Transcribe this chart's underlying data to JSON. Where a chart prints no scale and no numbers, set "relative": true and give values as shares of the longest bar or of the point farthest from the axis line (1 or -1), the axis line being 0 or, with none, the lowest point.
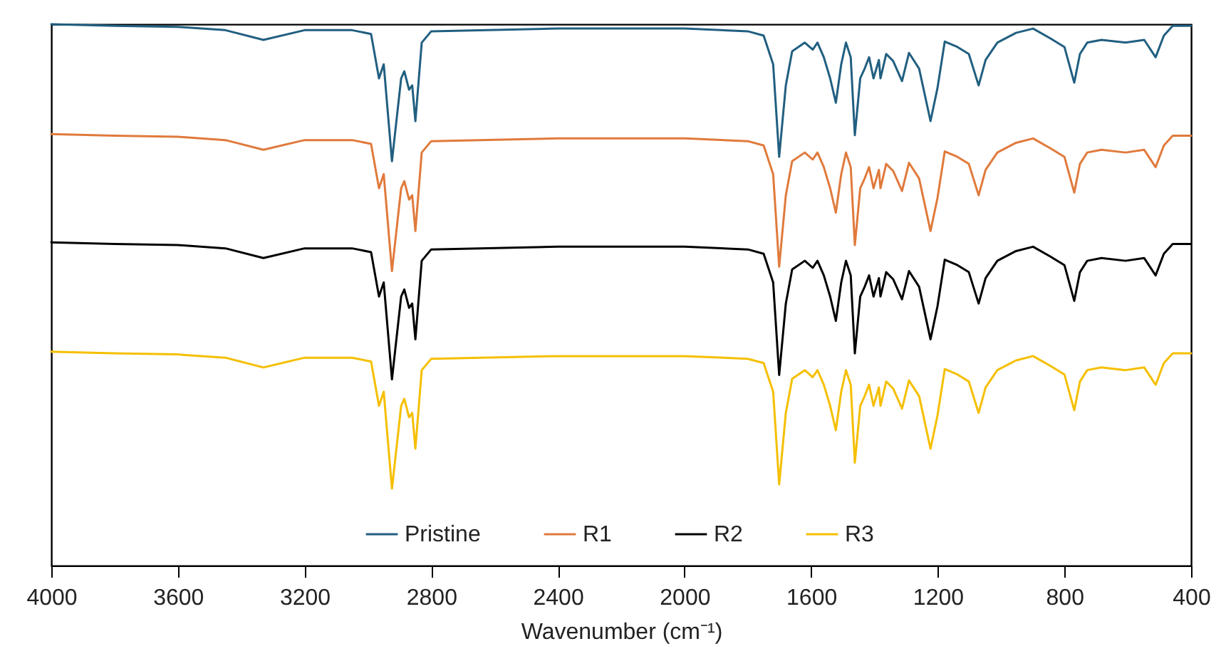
{
  "chart_data": {
    "type": "line",
    "relative": true,
    "xlabel": "Wavenumber (cm⁻¹)",
    "xlim": [
      4000,
      400
    ],
    "xticks": [
      4000,
      3600,
      3200,
      2800,
      2400,
      2000,
      1600,
      1200,
      800,
      400
    ],
    "tick_labels": "x",
    "legend": "bottom",
    "x": [
      4000,
      3800,
      3600,
      3450,
      3330,
      3200,
      3050,
      2990,
      2965,
      2950,
      2924,
      2895,
      2885,
      2870,
      2860,
      2850,
      2830,
      2800,
      2400,
      2000,
      1800,
      1750,
      1720,
      1701,
      1680,
      1660,
      1620,
      1595,
      1580,
      1560,
      1540,
      1522,
      1505,
      1490,
      1475,
      1462,
      1445,
      1431,
      1417,
      1403,
      1386,
      1381,
      1363,
      1341,
      1313,
      1291,
      1259,
      1223,
      1201,
      1178,
      1138,
      1102,
      1071,
      1049,
      1012,
      953,
      899,
      845,
      800,
      769,
      751,
      728,
      683,
      607,
      548,
      512,
      486,
      458,
      400
    ],
    "series": [
      {
        "name": "Pristine",
        "color": "#215f80",
        "values": [
          1.0,
          0.997,
          0.995,
          0.989,
          0.971,
          0.989,
          0.989,
          0.982,
          0.9,
          0.926,
          0.747,
          0.9,
          0.913,
          0.879,
          0.887,
          0.821,
          0.966,
          0.987,
          0.992,
          0.992,
          0.987,
          0.979,
          0.926,
          0.755,
          0.887,
          0.95,
          0.966,
          0.953,
          0.966,
          0.939,
          0.9,
          0.855,
          0.926,
          0.966,
          0.939,
          0.795,
          0.9,
          0.918,
          0.939,
          0.9,
          0.934,
          0.9,
          0.945,
          0.932,
          0.895,
          0.947,
          0.918,
          0.821,
          0.882,
          0.968,
          0.958,
          0.945,
          0.887,
          0.934,
          0.966,
          0.984,
          0.992,
          0.974,
          0.958,
          0.892,
          0.945,
          0.966,
          0.971,
          0.966,
          0.971,
          0.939,
          0.979,
          0.997,
          0.997
        ]
      },
      {
        "name": "R1",
        "color": "#e07a3c",
        "values": [
          0.797,
          0.794,
          0.792,
          0.786,
          0.768,
          0.786,
          0.786,
          0.779,
          0.697,
          0.723,
          0.544,
          0.697,
          0.71,
          0.676,
          0.684,
          0.618,
          0.763,
          0.784,
          0.789,
          0.789,
          0.784,
          0.776,
          0.723,
          0.552,
          0.684,
          0.747,
          0.763,
          0.75,
          0.763,
          0.736,
          0.697,
          0.652,
          0.723,
          0.763,
          0.736,
          0.592,
          0.697,
          0.715,
          0.736,
          0.697,
          0.731,
          0.697,
          0.742,
          0.729,
          0.692,
          0.744,
          0.715,
          0.618,
          0.679,
          0.765,
          0.755,
          0.742,
          0.684,
          0.731,
          0.763,
          0.781,
          0.789,
          0.771,
          0.755,
          0.689,
          0.742,
          0.763,
          0.768,
          0.763,
          0.768,
          0.736,
          0.776,
          0.794,
          0.794
        ]
      },
      {
        "name": "R2",
        "color": "#000000",
        "values": [
          0.597,
          0.594,
          0.592,
          0.586,
          0.568,
          0.586,
          0.586,
          0.579,
          0.497,
          0.523,
          0.344,
          0.497,
          0.51,
          0.476,
          0.484,
          0.418,
          0.563,
          0.584,
          0.589,
          0.589,
          0.584,
          0.576,
          0.523,
          0.352,
          0.484,
          0.547,
          0.563,
          0.55,
          0.563,
          0.536,
          0.497,
          0.452,
          0.523,
          0.563,
          0.536,
          0.392,
          0.497,
          0.515,
          0.536,
          0.497,
          0.531,
          0.497,
          0.542,
          0.529,
          0.492,
          0.544,
          0.515,
          0.418,
          0.479,
          0.565,
          0.555,
          0.542,
          0.484,
          0.531,
          0.563,
          0.581,
          0.589,
          0.571,
          0.555,
          0.489,
          0.542,
          0.563,
          0.568,
          0.563,
          0.568,
          0.536,
          0.576,
          0.594,
          0.594
        ]
      },
      {
        "name": "R3",
        "color": "#f5bf00",
        "values": [
          0.395,
          0.392,
          0.39,
          0.384,
          0.366,
          0.384,
          0.384,
          0.377,
          0.295,
          0.321,
          0.142,
          0.295,
          0.308,
          0.274,
          0.282,
          0.216,
          0.361,
          0.382,
          0.387,
          0.387,
          0.382,
          0.374,
          0.321,
          0.15,
          0.282,
          0.345,
          0.361,
          0.348,
          0.361,
          0.334,
          0.295,
          0.25,
          0.321,
          0.361,
          0.334,
          0.19,
          0.295,
          0.313,
          0.334,
          0.295,
          0.329,
          0.295,
          0.34,
          0.327,
          0.29,
          0.342,
          0.313,
          0.216,
          0.277,
          0.363,
          0.353,
          0.34,
          0.282,
          0.329,
          0.361,
          0.379,
          0.387,
          0.369,
          0.353,
          0.287,
          0.34,
          0.361,
          0.366,
          0.361,
          0.366,
          0.334,
          0.374,
          0.392,
          0.392
        ]
      }
    ]
  }
}
